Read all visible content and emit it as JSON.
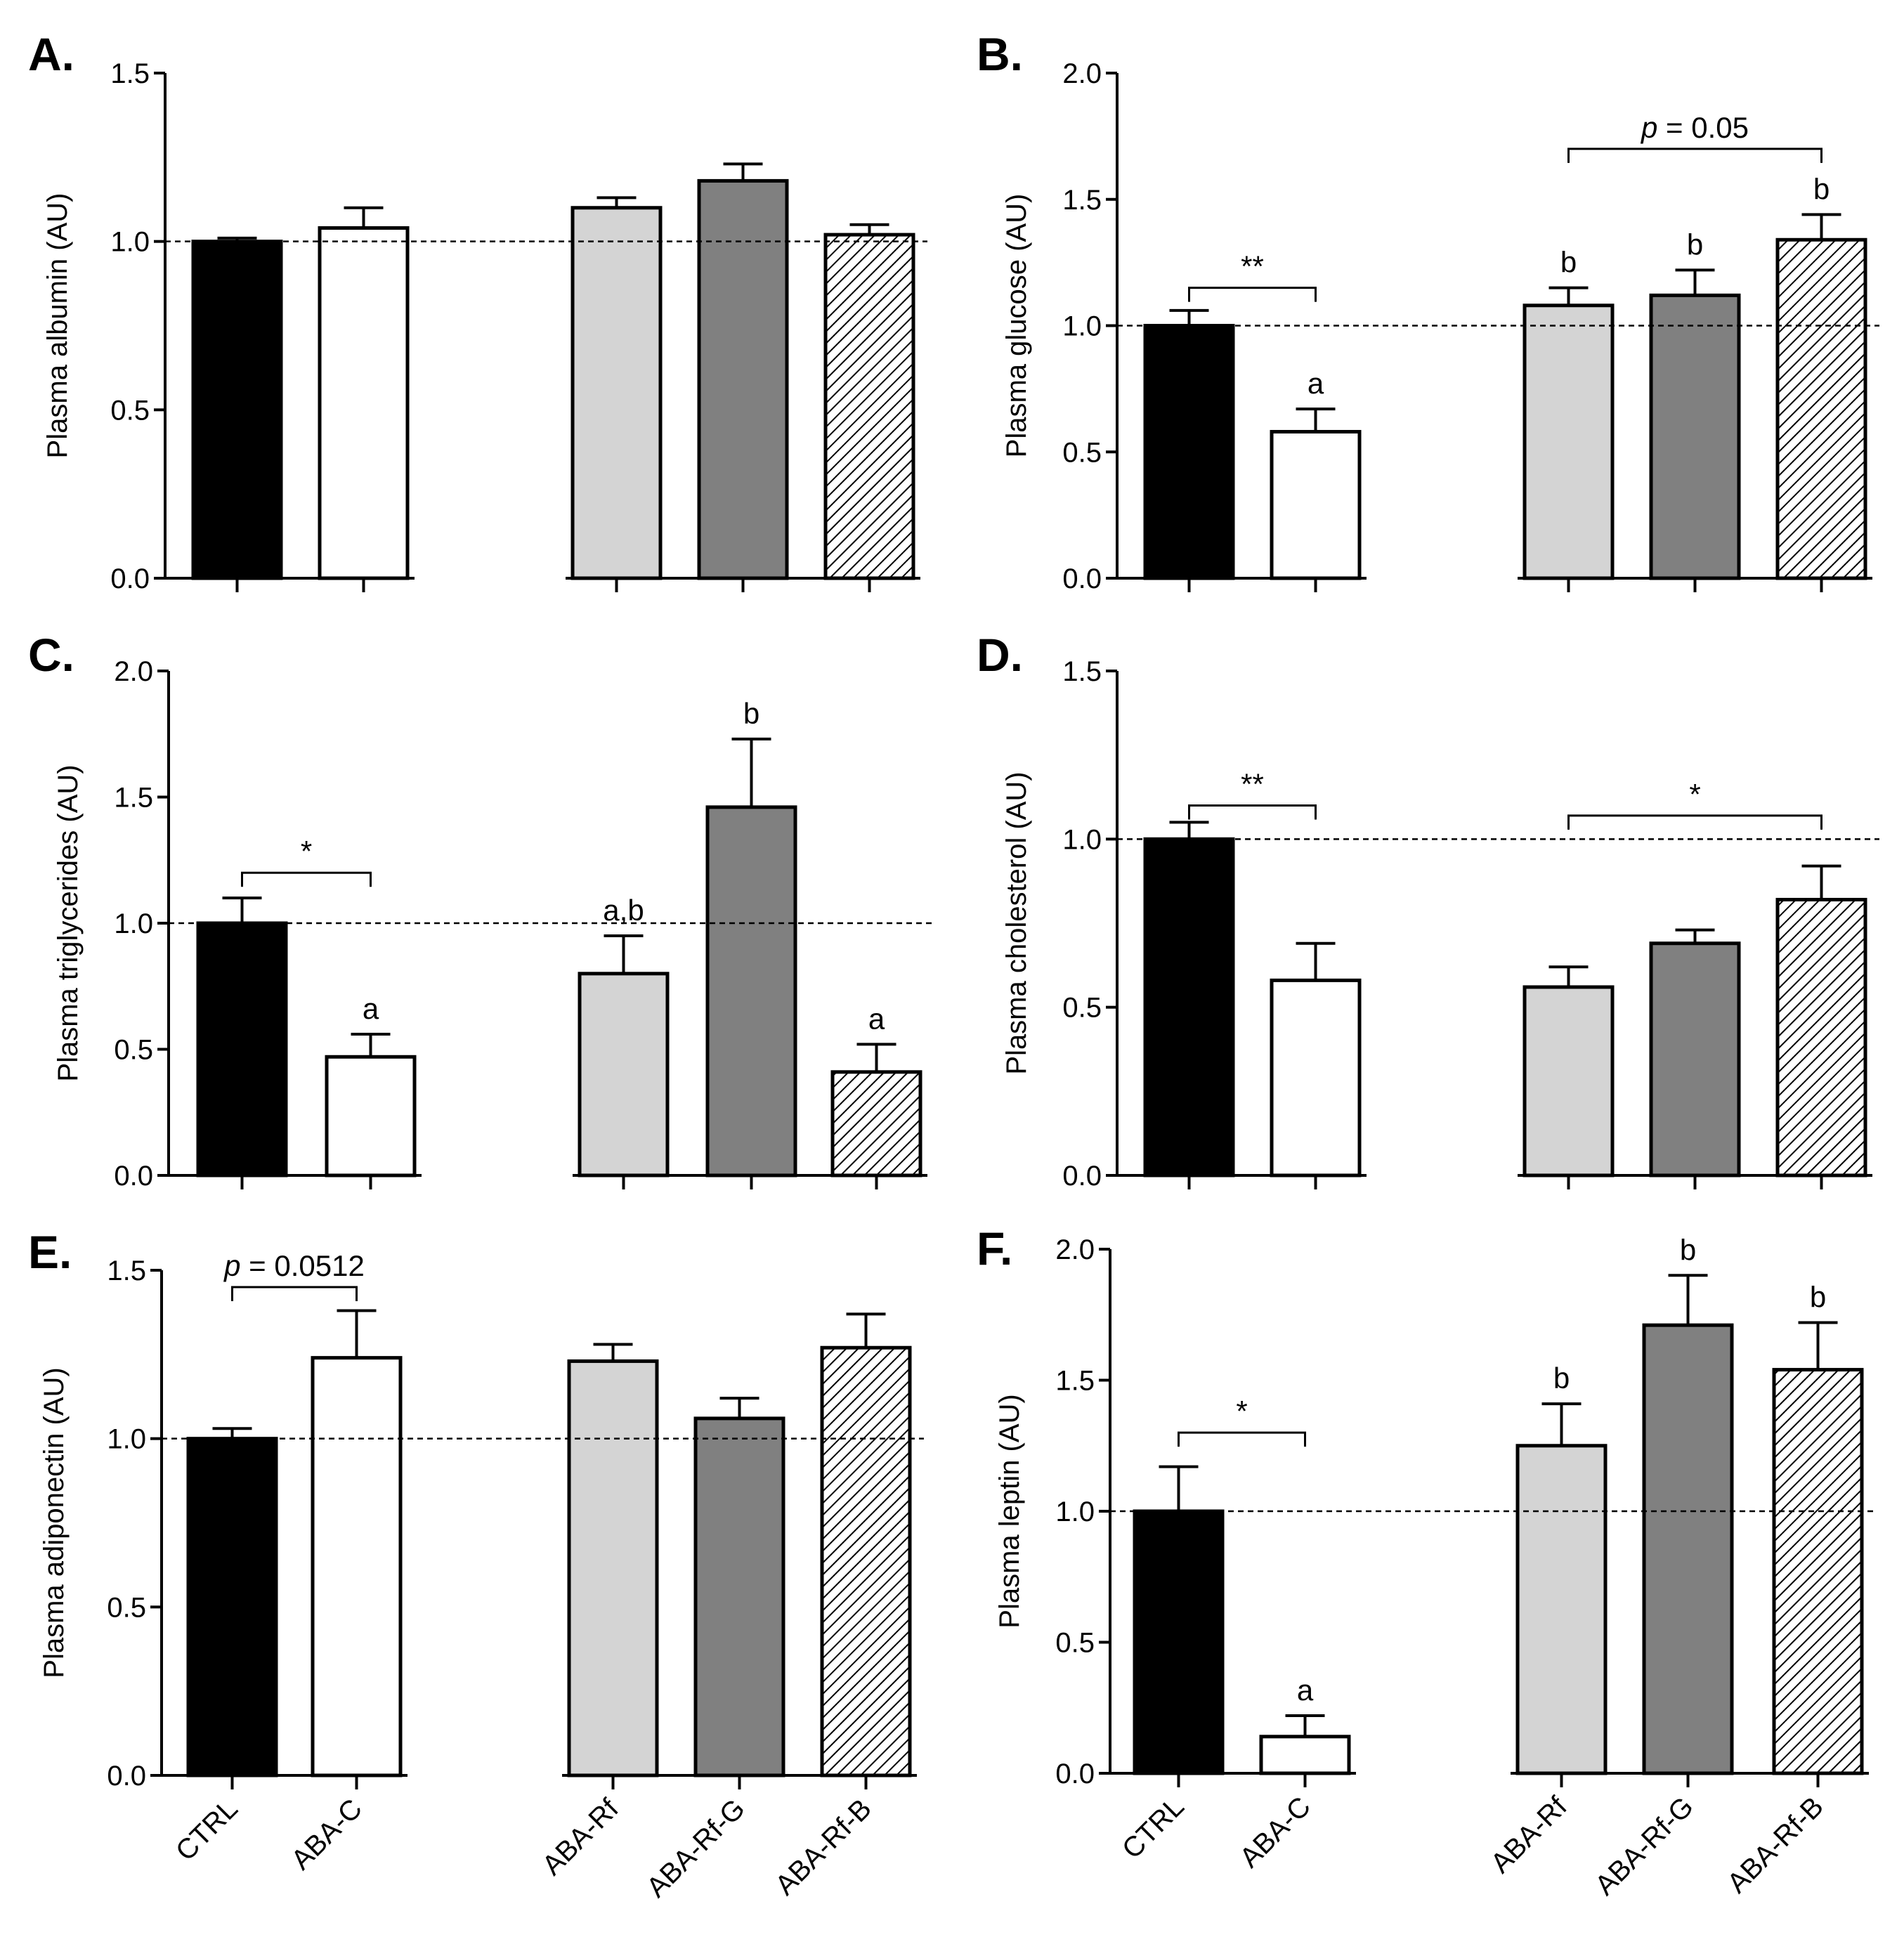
{
  "categories": [
    "CTRL",
    "ABA-C",
    "ABA-Rf",
    "ABA-Rf-G",
    "ABA-Rf-B"
  ],
  "colors": {
    "CTRL": "#000000",
    "ABA-C": "#ffffff",
    "ABA-Rf": "#d4d4d4",
    "ABA-Rf-G": "#808080",
    "ABA-Rf-B": "hatch"
  },
  "chart_data": [
    {
      "panel": "A.",
      "type": "bar",
      "ylabel": "Plasma albumin (AU)",
      "ylim": [
        0,
        1.5
      ],
      "yticks": [
        "0.0",
        "0.5",
        "1.0",
        "1.5"
      ],
      "reference_line": 1.0,
      "categories": [
        "CTRL",
        "ABA-C",
        "ABA-Rf",
        "ABA-Rf-G",
        "ABA-Rf-B"
      ],
      "values": [
        1.0,
        1.04,
        1.1,
        1.18,
        1.02
      ],
      "errors": [
        0.01,
        0.06,
        0.03,
        0.05,
        0.03
      ],
      "letters": [
        "",
        "",
        "",
        "",
        ""
      ],
      "brackets": []
    },
    {
      "panel": "B.",
      "type": "bar",
      "ylabel": "Plasma glucose (AU)",
      "ylim": [
        0,
        2.0
      ],
      "yticks": [
        "0.0",
        "0.5",
        "1.0",
        "1.5",
        "2.0"
      ],
      "reference_line": 1.0,
      "categories": [
        "CTRL",
        "ABA-C",
        "ABA-Rf",
        "ABA-Rf-G",
        "ABA-Rf-B"
      ],
      "values": [
        1.0,
        0.58,
        1.08,
        1.12,
        1.34
      ],
      "errors": [
        0.06,
        0.09,
        0.07,
        0.1,
        0.1
      ],
      "letters": [
        "",
        "a",
        "b",
        "b",
        "b"
      ],
      "brackets": [
        {
          "from": 0,
          "to": 1,
          "y": 1.15,
          "label": "**"
        },
        {
          "from": 2,
          "to": 4,
          "y": 1.7,
          "label_prefix": "p",
          "label": " = 0.05"
        }
      ]
    },
    {
      "panel": "C.",
      "type": "bar",
      "ylabel": "Plasma triglycerides (AU)",
      "ylim": [
        0,
        2.0
      ],
      "yticks": [
        "0.0",
        "0.5",
        "1.0",
        "1.5",
        "2.0"
      ],
      "reference_line": 1.0,
      "categories": [
        "CTRL",
        "ABA-C",
        "ABA-Rf",
        "ABA-Rf-G",
        "ABA-Rf-B"
      ],
      "values": [
        1.0,
        0.47,
        0.8,
        1.46,
        0.41
      ],
      "errors": [
        0.1,
        0.09,
        0.15,
        0.27,
        0.11
      ],
      "letters": [
        "",
        "a",
        "a,b",
        "b",
        "a"
      ],
      "brackets": [
        {
          "from": 0,
          "to": 1,
          "y": 1.2,
          "label": "*"
        }
      ]
    },
    {
      "panel": "D.",
      "type": "bar",
      "ylabel": "Plasma cholesterol (AU)",
      "ylim": [
        0,
        1.5
      ],
      "yticks": [
        "0.0",
        "0.5",
        "1.0",
        "1.5"
      ],
      "reference_line": 1.0,
      "categories": [
        "CTRL",
        "ABA-C",
        "ABA-Rf",
        "ABA-Rf-G",
        "ABA-Rf-B"
      ],
      "values": [
        1.0,
        0.58,
        0.56,
        0.69,
        0.82
      ],
      "errors": [
        0.05,
        0.11,
        0.06,
        0.04,
        0.1
      ],
      "letters": [
        "",
        "",
        "",
        "",
        ""
      ],
      "brackets": [
        {
          "from": 0,
          "to": 1,
          "y": 1.1,
          "label": "**"
        },
        {
          "from": 2,
          "to": 4,
          "y": 1.07,
          "label": "*"
        }
      ]
    },
    {
      "panel": "E.",
      "type": "bar",
      "ylabel": "Plasma adiponectin (AU)",
      "ylim": [
        0,
        1.5
      ],
      "yticks": [
        "0.0",
        "0.5",
        "1.0",
        "1.5"
      ],
      "reference_line": 1.0,
      "categories": [
        "CTRL",
        "ABA-C",
        "ABA-Rf",
        "ABA-Rf-G",
        "ABA-Rf-B"
      ],
      "values": [
        1.0,
        1.24,
        1.23,
        1.06,
        1.27
      ],
      "errors": [
        0.03,
        0.14,
        0.05,
        0.06,
        0.1
      ],
      "letters": [
        "",
        "",
        "",
        "",
        ""
      ],
      "brackets": [
        {
          "from": 0,
          "to": 1,
          "y": 1.45,
          "label_prefix": "p",
          "label": " = 0.0512"
        }
      ]
    },
    {
      "panel": "F.",
      "type": "bar",
      "ylabel": "Plasma leptin (AU)",
      "ylim": [
        0,
        2.0
      ],
      "yticks": [
        "0.0",
        "0.5",
        "1.0",
        "1.5",
        "2.0"
      ],
      "reference_line": 1.0,
      "categories": [
        "CTRL",
        "ABA-C",
        "ABA-Rf",
        "ABA-Rf-G",
        "ABA-Rf-B"
      ],
      "values": [
        1.0,
        0.14,
        1.25,
        1.71,
        1.54
      ],
      "errors": [
        0.17,
        0.08,
        0.16,
        0.19,
        0.18
      ],
      "letters": [
        "",
        "a",
        "b",
        "b",
        "b"
      ],
      "brackets": [
        {
          "from": 0,
          "to": 1,
          "y": 1.3,
          "label": "*"
        }
      ]
    }
  ]
}
